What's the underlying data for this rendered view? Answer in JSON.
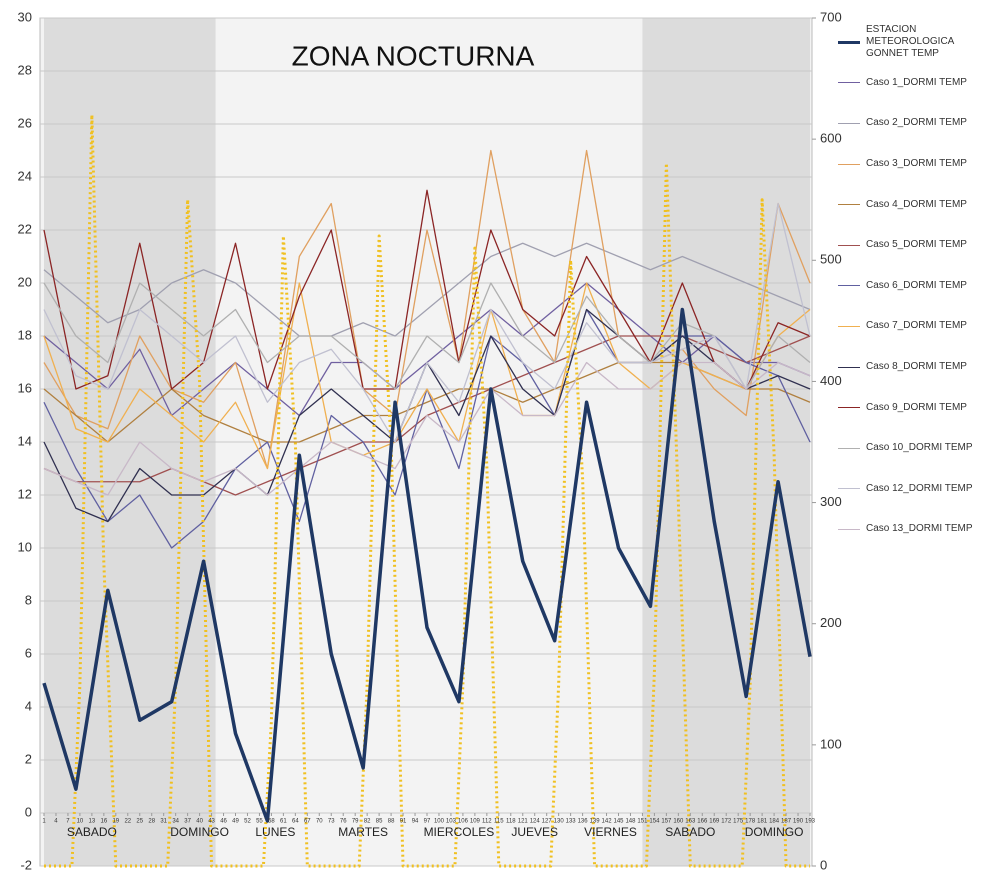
{
  "chart_data": {
    "type": "line",
    "title": "ZONA NOCTURNA",
    "xlim": [
      1,
      193
    ],
    "xticks": [
      1,
      4,
      7,
      10,
      13,
      16,
      19,
      22,
      25,
      28,
      31,
      34,
      37,
      40,
      43,
      46,
      49,
      52,
      55,
      58,
      61,
      64,
      67,
      70,
      73,
      76,
      79,
      82,
      85,
      88,
      91,
      94,
      97,
      100,
      103,
      106,
      109,
      112,
      115,
      118,
      121,
      124,
      127,
      130,
      133,
      136,
      139,
      142,
      145,
      148,
      151,
      154,
      157,
      160,
      163,
      166,
      169,
      172,
      175,
      178,
      181,
      184,
      187,
      190,
      193
    ],
    "ylim": [
      -2,
      30
    ],
    "yticks": [
      -2,
      0,
      2,
      4,
      6,
      8,
      10,
      12,
      14,
      16,
      18,
      20,
      22,
      24,
      26,
      28,
      30
    ],
    "y2lim": [
      0,
      700
    ],
    "y2ticks": [
      0,
      100,
      200,
      300,
      400,
      500,
      600,
      700
    ],
    "grid": true,
    "shaded_ranges": [
      [
        1,
        44
      ],
      [
        151,
        193
      ]
    ],
    "annotations": [
      {
        "text": "SABADO",
        "x": 13
      },
      {
        "text": "DOMINGO",
        "x": 40
      },
      {
        "text": "LUNES",
        "x": 59
      },
      {
        "text": "MARTES",
        "x": 81
      },
      {
        "text": "MIERCOLES",
        "x": 105
      },
      {
        "text": "JUEVES",
        "x": 124
      },
      {
        "text": "VIERNES",
        "x": 143
      },
      {
        "text": "SABADO",
        "x": 163
      },
      {
        "text": "DOMINGO",
        "x": 184
      }
    ],
    "x": [
      1,
      9,
      17,
      25,
      33,
      41,
      49,
      57,
      65,
      73,
      81,
      89,
      97,
      105,
      113,
      121,
      129,
      137,
      145,
      153,
      161,
      169,
      177,
      185,
      193
    ],
    "series": [
      {
        "name": "ESTACION METEOROLOGICA GONNET TEMP",
        "color": "#1f3864",
        "width": 3.5,
        "values": [
          4.9,
          0.9,
          8.4,
          3.5,
          4.2,
          9.5,
          3,
          -0.3,
          13.5,
          6,
          1.7,
          15.5,
          7,
          4.2,
          16,
          9.5,
          6.5,
          15.5,
          10,
          7.8,
          19,
          11,
          4.4,
          12.5,
          5.9
        ]
      },
      {
        "name": "Caso 1_DORMI TEMP",
        "color": "#7060a0",
        "width": 1.3,
        "values": [
          18,
          17,
          16,
          17.5,
          15,
          16,
          17,
          16,
          15,
          17,
          17,
          16,
          17,
          18,
          19,
          18,
          19,
          20,
          19,
          18,
          17,
          18,
          17,
          17,
          16.5
        ]
      },
      {
        "name": "Caso 2_DORMI TEMP",
        "color": "#a0a0b0",
        "width": 1.3,
        "values": [
          20.5,
          19.5,
          18.5,
          19,
          20,
          20.5,
          20,
          19,
          18,
          18,
          18.5,
          18,
          19,
          20,
          21,
          21.5,
          21,
          21.5,
          21,
          20.5,
          21,
          20.5,
          20,
          19.5,
          19
        ]
      },
      {
        "name": "Caso 3_DORMI TEMP",
        "color": "#e0a060",
        "width": 1.3,
        "values": [
          17,
          15,
          14.5,
          18,
          16,
          15.5,
          17,
          13,
          21,
          23,
          16,
          15,
          22,
          17,
          25,
          19,
          17,
          25,
          18,
          17,
          17.5,
          16,
          15,
          23,
          20
        ]
      },
      {
        "name": "Caso 4_DORMI TEMP",
        "color": "#b08040",
        "width": 1.3,
        "values": [
          16,
          15,
          14,
          15,
          16,
          15,
          14.5,
          14,
          14,
          14.5,
          15,
          15,
          15.5,
          16,
          16,
          15.5,
          16,
          16.5,
          17,
          17,
          17,
          16.5,
          16,
          16,
          15.5
        ]
      },
      {
        "name": "Caso 5_DORMI TEMP",
        "color": "#a05050",
        "width": 1.3,
        "values": [
          13,
          12.5,
          12.5,
          12.5,
          13,
          12.5,
          12,
          12.5,
          13,
          13.5,
          14,
          14,
          15,
          15.5,
          16,
          16.5,
          17,
          17.5,
          18,
          18,
          18,
          17.5,
          17,
          17.5,
          18
        ]
      },
      {
        "name": "Caso 6_DORMI TEMP",
        "color": "#6060a0",
        "width": 1.3,
        "values": [
          15.5,
          13,
          11,
          12,
          10,
          11,
          13,
          14,
          11,
          15,
          14,
          12,
          16,
          13,
          18,
          17,
          15,
          19,
          17,
          17,
          18,
          18,
          17,
          16.5,
          14
        ]
      },
      {
        "name": "Caso 7_DORMI TEMP",
        "color": "#f0b050",
        "width": 1.3,
        "values": [
          18,
          14.5,
          14,
          16,
          15,
          14,
          15.5,
          13,
          20,
          14,
          13.5,
          14,
          16,
          14,
          19,
          15,
          15,
          20,
          17,
          16,
          17,
          16.5,
          16,
          18,
          19
        ]
      },
      {
        "name": "Caso 8_DORMI TEMP",
        "color": "#303050",
        "width": 1.3,
        "values": [
          14,
          11.5,
          11,
          13,
          12,
          12,
          13,
          12,
          15,
          16,
          15,
          14,
          17,
          15,
          18,
          16,
          15,
          19,
          18,
          17,
          18,
          17,
          16,
          16.5,
          16
        ]
      },
      {
        "name": "Caso 9_DORMI TEMP",
        "color": "#8b2525",
        "width": 1.3,
        "values": [
          22,
          16,
          16.5,
          21.5,
          16,
          17,
          21.5,
          16,
          19.5,
          22,
          16,
          16,
          23.5,
          17,
          22,
          19,
          18,
          21,
          19,
          17,
          20,
          17,
          16,
          18.5,
          18
        ]
      },
      {
        "name": "Caso 10_DORMI TEMP",
        "color": "#b0b0b0",
        "width": 1.3,
        "values": [
          20,
          18,
          17,
          20,
          19,
          18,
          19,
          17,
          18,
          18,
          17,
          16,
          18,
          17,
          20,
          18,
          17,
          19.5,
          18,
          17,
          18.5,
          18,
          16,
          18,
          17
        ]
      },
      {
        "name": "Caso 12_DORMI TEMP",
        "color": "#c0c0d0",
        "width": 1.3,
        "values": [
          19,
          16.5,
          16,
          19,
          18,
          17,
          18,
          15.5,
          17,
          17.5,
          16,
          14,
          17,
          15.5,
          19,
          17,
          16,
          18.5,
          17,
          17,
          17.5,
          18,
          16,
          23,
          18
        ]
      },
      {
        "name": "Caso 13_DORMI TEMP",
        "color": "#c8b8c8",
        "width": 1.3,
        "values": [
          13,
          12.5,
          12,
          14,
          13,
          12.5,
          13,
          12,
          13,
          14,
          13.5,
          13,
          15,
          14,
          16,
          15,
          15,
          17,
          16,
          16,
          17,
          17,
          16,
          17,
          16.5
        ]
      },
      {
        "color": "#f0c020",
        "width": 3,
        "dash": true,
        "axis": "y2",
        "x": [
          1,
          8,
          10,
          13,
          16,
          19,
          32,
          34,
          37,
          40,
          43,
          56,
          58,
          61,
          64,
          67,
          80,
          82,
          85,
          88,
          91,
          104,
          106,
          109,
          112,
          115,
          128,
          130,
          133,
          136,
          139,
          152,
          154,
          157,
          160,
          163,
          176,
          178,
          181,
          184,
          187,
          193
        ],
        "values": [
          0,
          0,
          150,
          620,
          250,
          0,
          0,
          150,
          550,
          400,
          0,
          0,
          120,
          520,
          350,
          0,
          0,
          150,
          520,
          350,
          0,
          0,
          150,
          510,
          330,
          0,
          0,
          150,
          500,
          320,
          0,
          0,
          160,
          580,
          300,
          0,
          0,
          150,
          550,
          340,
          0,
          0
        ]
      }
    ]
  }
}
